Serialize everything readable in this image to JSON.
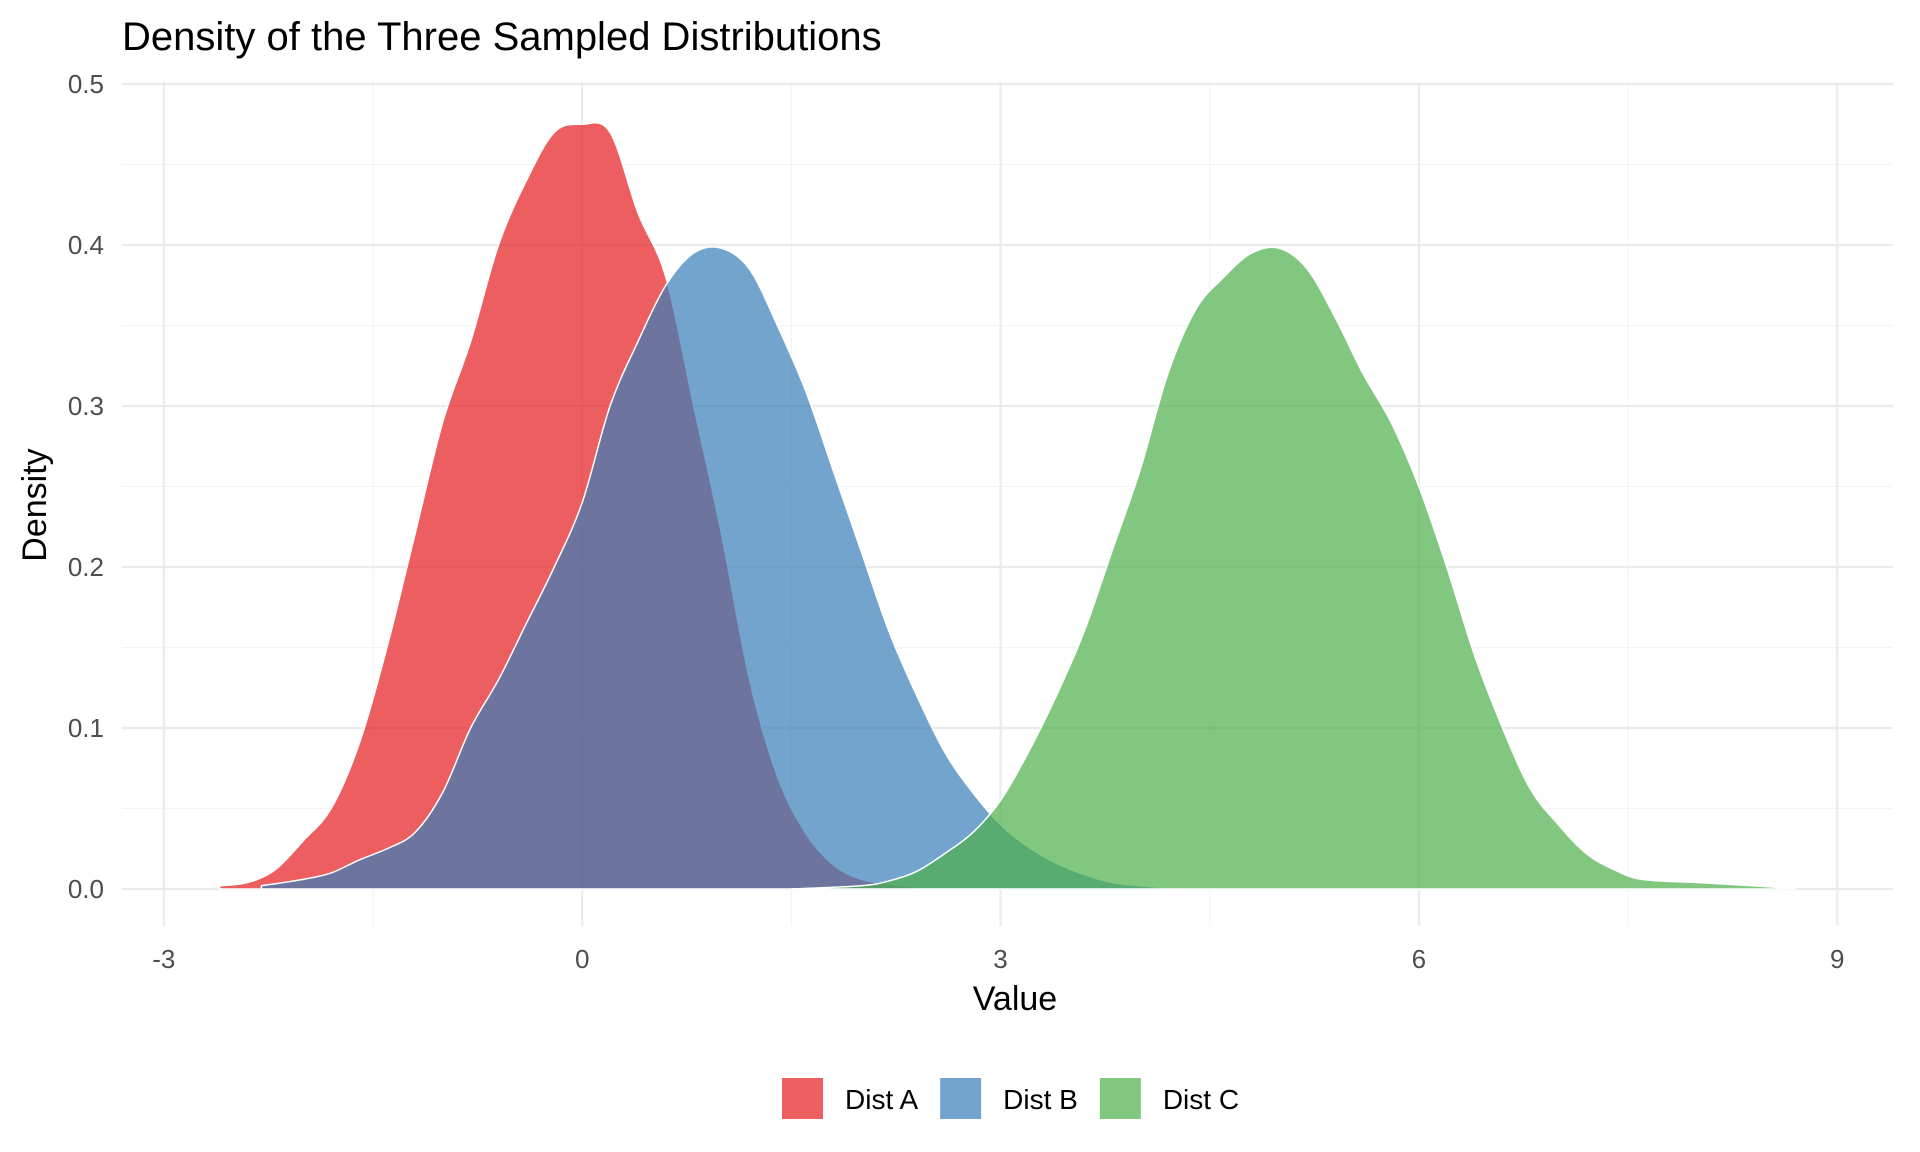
{
  "chart_data": {
    "type": "area",
    "subtype": "density",
    "title": "Density of the Three Sampled Distributions",
    "xlabel": "Value",
    "ylabel": "Density",
    "xlim": [
      -3.3,
      9.4
    ],
    "ylim": [
      0,
      0.5
    ],
    "x_ticks": [
      "-3",
      "0",
      "3",
      "6",
      "9"
    ],
    "x_tick_values": [
      -3,
      0,
      3,
      6,
      9
    ],
    "y_ticks": [
      "0.0",
      "0.1",
      "0.2",
      "0.3",
      "0.4",
      "0.5"
    ],
    "y_tick_values": [
      0,
      0.1,
      0.2,
      0.3,
      0.4,
      0.5
    ],
    "grid": true,
    "legend_position": "bottom",
    "series": [
      {
        "name": "Dist A",
        "color": "#E41A1C",
        "x": [
          -2.6,
          -2.4,
          -2.2,
          -2.0,
          -1.8,
          -1.6,
          -1.4,
          -1.2,
          -1.0,
          -0.8,
          -0.6,
          -0.4,
          -0.2,
          0.0,
          0.2,
          0.4,
          0.6,
          0.8,
          1.0,
          1.2,
          1.4,
          1.6,
          1.8,
          2.0,
          2.2,
          2.4,
          2.6,
          2.8,
          3.0
        ],
        "values": [
          0.002,
          0.004,
          0.012,
          0.03,
          0.05,
          0.09,
          0.15,
          0.22,
          0.29,
          0.34,
          0.4,
          0.44,
          0.47,
          0.475,
          0.47,
          0.42,
          0.38,
          0.3,
          0.22,
          0.13,
          0.07,
          0.035,
          0.015,
          0.006,
          0.003,
          0.001,
          0.0005,
          0.0002,
          0.0
        ]
      },
      {
        "name": "Dist B",
        "color": "#377EB8",
        "x": [
          -2.3,
          -2.0,
          -1.8,
          -1.6,
          -1.4,
          -1.2,
          -1.0,
          -0.8,
          -0.6,
          -0.4,
          -0.2,
          0.0,
          0.2,
          0.4,
          0.6,
          0.8,
          1.0,
          1.2,
          1.4,
          1.6,
          1.8,
          2.0,
          2.2,
          2.4,
          2.6,
          2.8,
          3.0,
          3.2,
          3.4,
          3.6,
          3.8,
          4.0,
          4.3
        ],
        "values": [
          0.002,
          0.006,
          0.01,
          0.018,
          0.025,
          0.035,
          0.06,
          0.1,
          0.13,
          0.165,
          0.2,
          0.24,
          0.3,
          0.34,
          0.375,
          0.395,
          0.398,
          0.385,
          0.35,
          0.31,
          0.26,
          0.21,
          0.16,
          0.12,
          0.085,
          0.06,
          0.04,
          0.026,
          0.016,
          0.009,
          0.004,
          0.002,
          0.0
        ]
      },
      {
        "name": "Dist C",
        "color": "#4DAF4A",
        "x": [
          1.5,
          2.0,
          2.2,
          2.4,
          2.6,
          2.8,
          3.0,
          3.2,
          3.4,
          3.6,
          3.8,
          4.0,
          4.2,
          4.4,
          4.6,
          4.8,
          5.0,
          5.2,
          5.4,
          5.6,
          5.8,
          6.0,
          6.2,
          6.4,
          6.6,
          6.8,
          7.0,
          7.2,
          7.4,
          7.6,
          8.0,
          8.4,
          8.7
        ],
        "values": [
          0.0,
          0.002,
          0.005,
          0.011,
          0.022,
          0.035,
          0.055,
          0.085,
          0.12,
          0.16,
          0.21,
          0.26,
          0.32,
          0.36,
          0.38,
          0.395,
          0.398,
          0.385,
          0.355,
          0.32,
          0.29,
          0.25,
          0.2,
          0.145,
          0.1,
          0.062,
          0.04,
          0.022,
          0.012,
          0.006,
          0.004,
          0.002,
          0.0
        ]
      }
    ]
  }
}
